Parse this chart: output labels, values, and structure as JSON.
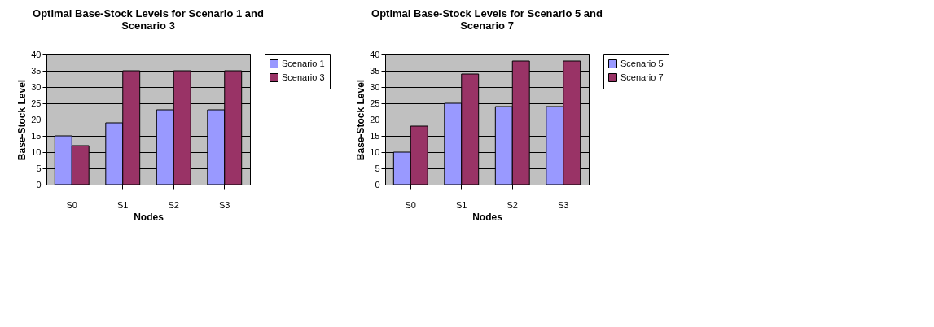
{
  "chart_data": [
    {
      "type": "bar",
      "title": "Optimal Base-Stock  Levels for Scenario 1 and Scenario 3",
      "xlabel": "Nodes",
      "ylabel": "Base-Stock Level",
      "categories": [
        "S0",
        "S1",
        "S2",
        "S3"
      ],
      "series": [
        {
          "name": "Scenario 1",
          "color": "#9999ff",
          "values": [
            15,
            19,
            23,
            23
          ]
        },
        {
          "name": "Scenario 3",
          "color": "#993366",
          "values": [
            12,
            35,
            35,
            35
          ]
        }
      ],
      "ylim": [
        0,
        40
      ],
      "yticks": [
        0,
        5,
        10,
        15,
        20,
        25,
        30,
        35,
        40
      ],
      "grid": "y",
      "legend": "right"
    },
    {
      "type": "bar",
      "title": "Optimal Base-Stock  Levels for Scenario 5 and Scenario 7",
      "xlabel": "Nodes",
      "ylabel": "Base-Stock Level",
      "categories": [
        "S0",
        "S1",
        "S2",
        "S3"
      ],
      "series": [
        {
          "name": "Scenario 5",
          "color": "#9999ff",
          "values": [
            10,
            25,
            24,
            24
          ]
        },
        {
          "name": "Scenario 7",
          "color": "#993366",
          "values": [
            18,
            34,
            38,
            38
          ]
        }
      ],
      "ylim": [
        0,
        40
      ],
      "yticks": [
        0,
        5,
        10,
        15,
        20,
        25,
        30,
        35,
        40
      ],
      "grid": "y",
      "legend": "right"
    }
  ]
}
